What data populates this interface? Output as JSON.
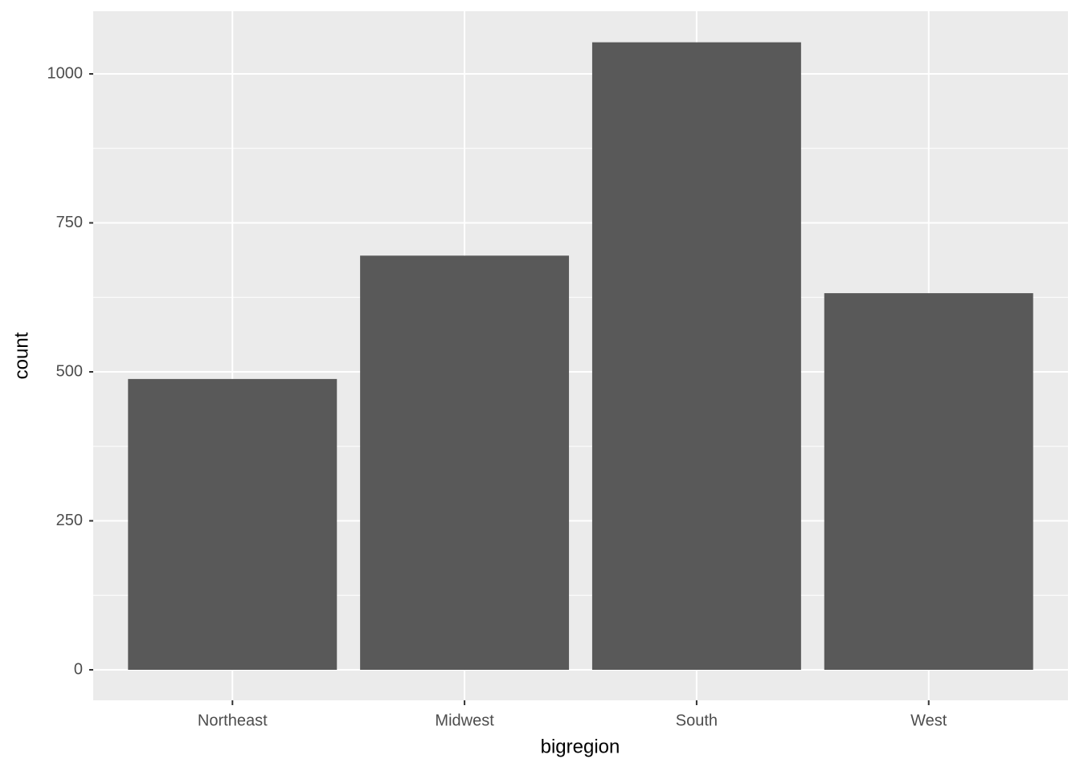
{
  "chart_data": {
    "type": "bar",
    "x_label": "bigregion",
    "y_label": "count",
    "categories": [
      "Northeast",
      "Midwest",
      "South",
      "West"
    ],
    "values": [
      488,
      695,
      1053,
      632
    ],
    "color": "#595959",
    "panel_background": "#ebebeb",
    "grid": true,
    "ylim": [
      -51.2,
      1105.1
    ],
    "yticks": [
      0,
      250,
      500,
      750,
      1000
    ]
  }
}
